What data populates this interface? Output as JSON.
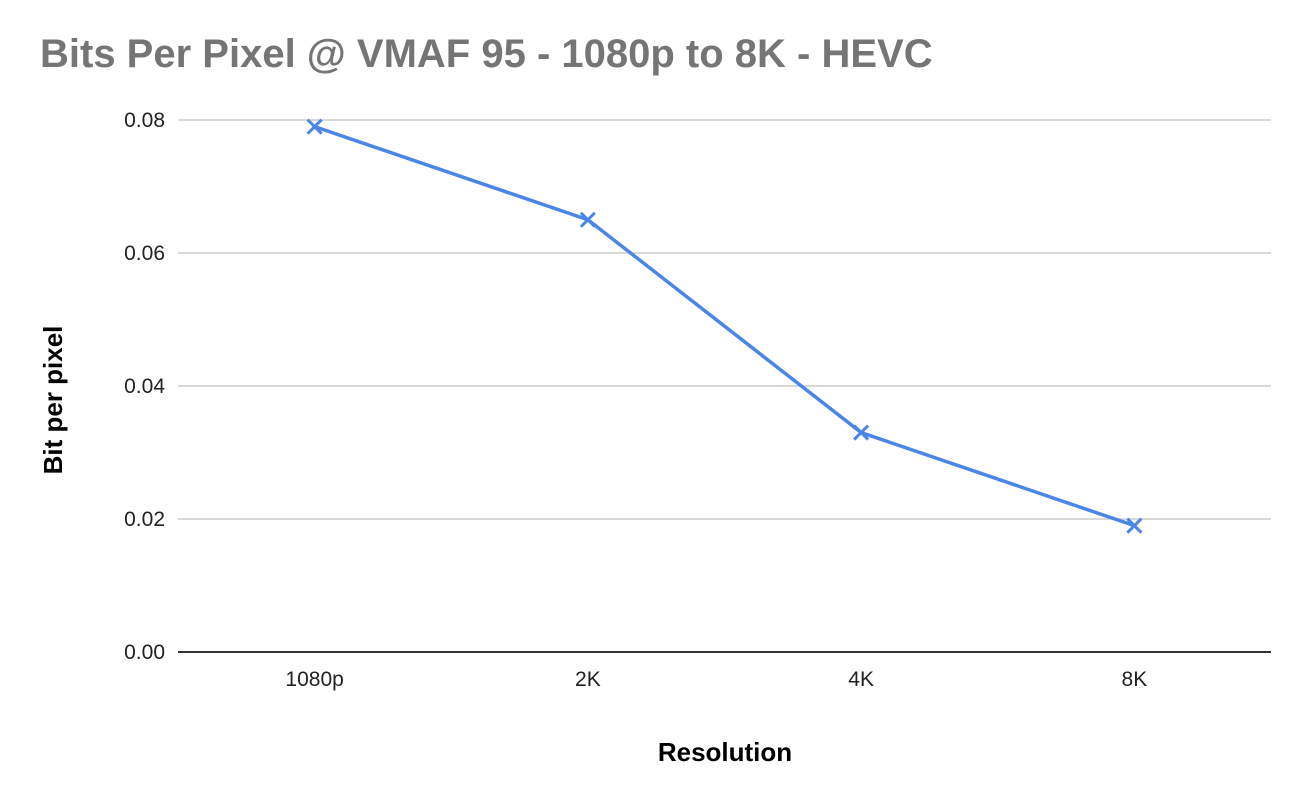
{
  "chart_data": {
    "type": "line",
    "title": "Bits Per Pixel @ VMAF 95 - 1080p to 8K - HEVC",
    "xlabel": "Resolution",
    "ylabel": "Bit per pixel",
    "categories": [
      "1080p",
      "2K",
      "4K",
      "8K"
    ],
    "series": [
      {
        "values": [
          0.079,
          0.065,
          0.033,
          0.019
        ],
        "color": "#4a86e8",
        "marker": "x"
      }
    ],
    "ylim": [
      0,
      0.08
    ],
    "yticks": [
      "0.00",
      "0.02",
      "0.04",
      "0.06",
      "0.08"
    ],
    "grid": true,
    "legend": "none"
  }
}
